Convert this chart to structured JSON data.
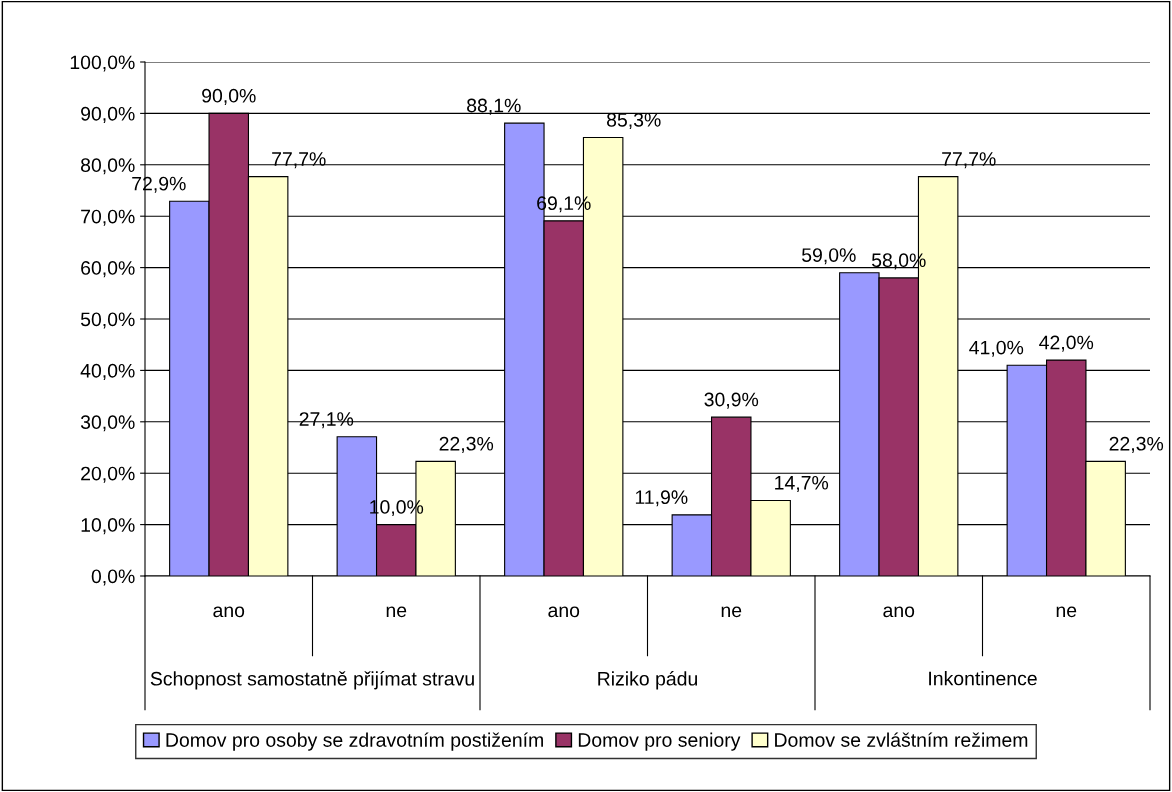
{
  "chart_data": {
    "type": "bar",
    "categories": [
      "ano",
      "ne",
      "ano",
      "ne",
      "ano",
      "ne"
    ],
    "series": [
      {
        "name": "Domov pro osoby se zdravotním postižením",
        "color": "#9999ff",
        "values": [
          72.9,
          27.1,
          88.1,
          11.9,
          59.0,
          41.0
        ],
        "value_labels": [
          "72,9%",
          "27,1%",
          "88,1%",
          "11,9%",
          "59,0%",
          "41,0%"
        ]
      },
      {
        "name": "Domov pro seniory",
        "color": "#993366",
        "values": [
          90.0,
          10.0,
          69.1,
          30.9,
          58.0,
          42.0
        ],
        "value_labels": [
          "90,0%",
          "10,0%",
          "69,1%",
          "30,9%",
          "58,0%",
          "42,0%"
        ]
      },
      {
        "name": "Domov se zvláštním režimem",
        "color": "#ffffcc",
        "values": [
          77.7,
          22.3,
          85.3,
          14.7,
          77.7,
          22.3
        ],
        "value_labels": [
          "77,7%",
          "22,3%",
          "85,3%",
          "14,7%",
          "77,7%",
          "22,3%"
        ]
      }
    ],
    "annotations": [
      "Schopnost samostatně přijímat stravu",
      "Riziko pádu",
      "Inkontinence"
    ],
    "ylim": [
      0,
      100
    ],
    "yticks": [
      {
        "value": 0,
        "label": "0,0%"
      },
      {
        "value": 10,
        "label": "10,0%"
      },
      {
        "value": 20,
        "label": "20,0%"
      },
      {
        "value": 30,
        "label": "30,0%"
      },
      {
        "value": 40,
        "label": "40,0%"
      },
      {
        "value": 50,
        "label": "50,0%"
      },
      {
        "value": 60,
        "label": "60,0%"
      },
      {
        "value": 70,
        "label": "70,0%"
      },
      {
        "value": 80,
        "label": "80,0%"
      },
      {
        "value": 90,
        "label": "90,0%"
      },
      {
        "value": 100,
        "label": "100,0%"
      }
    ],
    "grid": "y",
    "legend": "bottom"
  }
}
